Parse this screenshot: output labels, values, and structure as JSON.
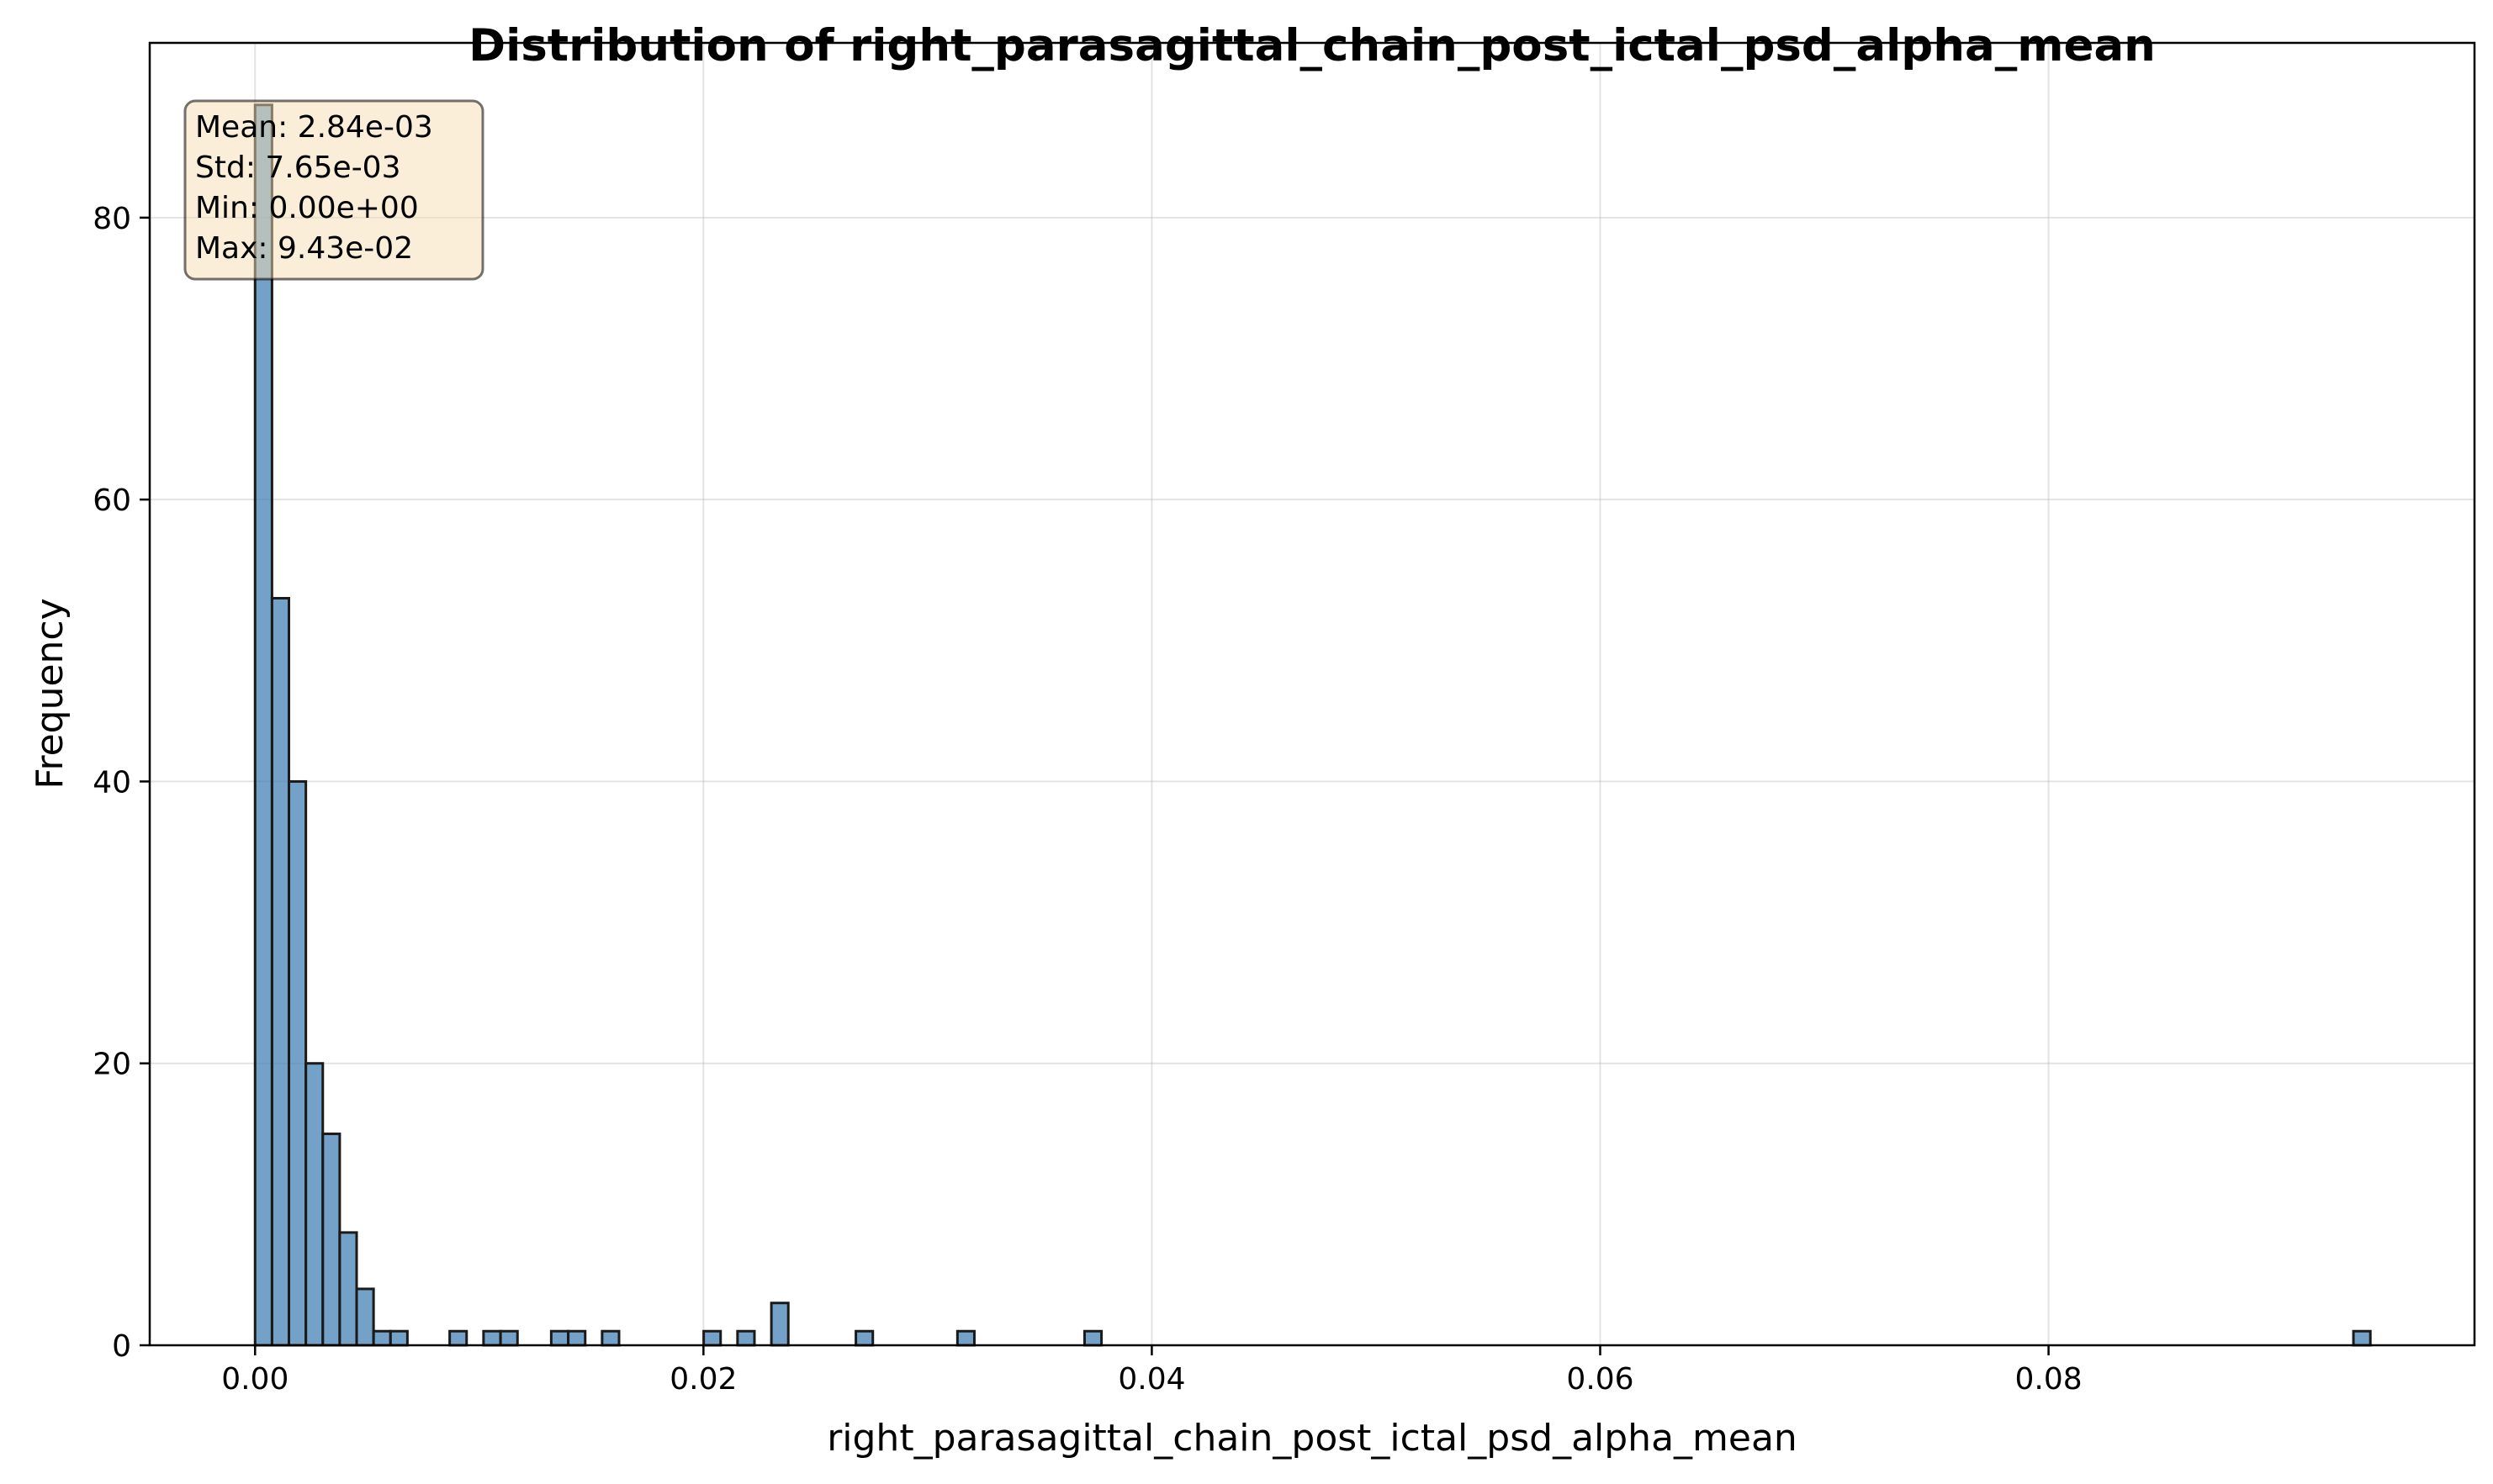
{
  "chart_data": {
    "type": "bar",
    "subtype": "histogram",
    "title": "Distribution of right_parasagittal_chain_post_ictal_psd_alpha_mean",
    "xlabel": "right_parasagittal_chain_post_ictal_psd_alpha_mean",
    "ylabel": "Frequency",
    "xlim": [
      -0.0047,
      0.099
    ],
    "ylim": [
      0,
      92.4
    ],
    "xticks": [
      0.0,
      0.02,
      0.04,
      0.06,
      0.08
    ],
    "xtick_labels": [
      "0.00",
      "0.02",
      "0.04",
      "0.06",
      "0.08"
    ],
    "yticks": [
      0,
      20,
      40,
      60,
      80
    ],
    "ytick_labels": [
      "0",
      "20",
      "40",
      "60",
      "80"
    ],
    "grid": true,
    "bar_color": "#4682b4",
    "bin_width": 0.000755,
    "bins": [
      {
        "x": 0.0,
        "count": 88
      },
      {
        "x": 0.000755,
        "count": 53
      },
      {
        "x": 0.00151,
        "count": 40
      },
      {
        "x": 0.002265,
        "count": 20
      },
      {
        "x": 0.00302,
        "count": 15
      },
      {
        "x": 0.003775,
        "count": 8
      },
      {
        "x": 0.00453,
        "count": 4
      },
      {
        "x": 0.005285,
        "count": 1
      },
      {
        "x": 0.00604,
        "count": 1
      },
      {
        "x": 0.00868,
        "count": 1
      },
      {
        "x": 0.01019,
        "count": 1
      },
      {
        "x": 0.01095,
        "count": 1
      },
      {
        "x": 0.01321,
        "count": 1
      },
      {
        "x": 0.01397,
        "count": 1
      },
      {
        "x": 0.01548,
        "count": 1
      },
      {
        "x": 0.02001,
        "count": 1
      },
      {
        "x": 0.02152,
        "count": 1
      },
      {
        "x": 0.02303,
        "count": 3
      },
      {
        "x": 0.0268,
        "count": 1
      },
      {
        "x": 0.03133,
        "count": 1
      },
      {
        "x": 0.037,
        "count": 1
      },
      {
        "x": 0.0936,
        "count": 1
      }
    ],
    "stats_box": {
      "lines": [
        "Mean: 2.84e-03",
        "Std: 7.65e-03",
        "Min: 0.00e+00",
        "Max: 9.43e-02"
      ],
      "placement": "top-left",
      "background": "#f5deb3"
    }
  }
}
